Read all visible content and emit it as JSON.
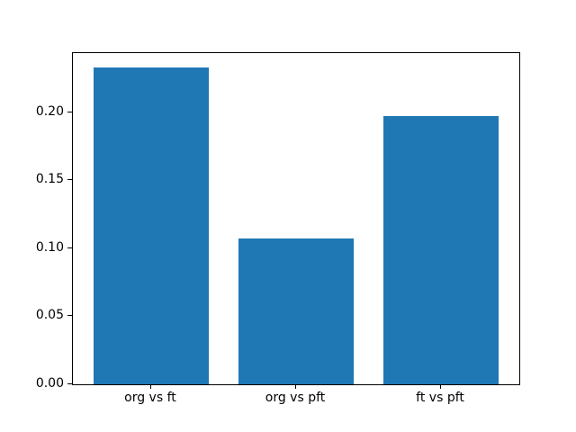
{
  "figure": {
    "background_color": "#ffffff"
  },
  "chart_data": {
    "type": "bar",
    "title": "",
    "xlabel": "",
    "ylabel": "",
    "categories": [
      "org vs ft",
      "org vs pft",
      "ft vs pft"
    ],
    "values": [
      0.233,
      0.107,
      0.197
    ],
    "bar_color": "#1f77b4",
    "axis_color": "#000000",
    "ylim": [
      0,
      0.2435
    ],
    "ytick_labels": [
      "0.00",
      "0.05",
      "0.10",
      "0.15",
      "0.20"
    ],
    "grid": false,
    "legend": "none",
    "bar_width_data_units": 0.8,
    "x_margin": 0.05
  }
}
